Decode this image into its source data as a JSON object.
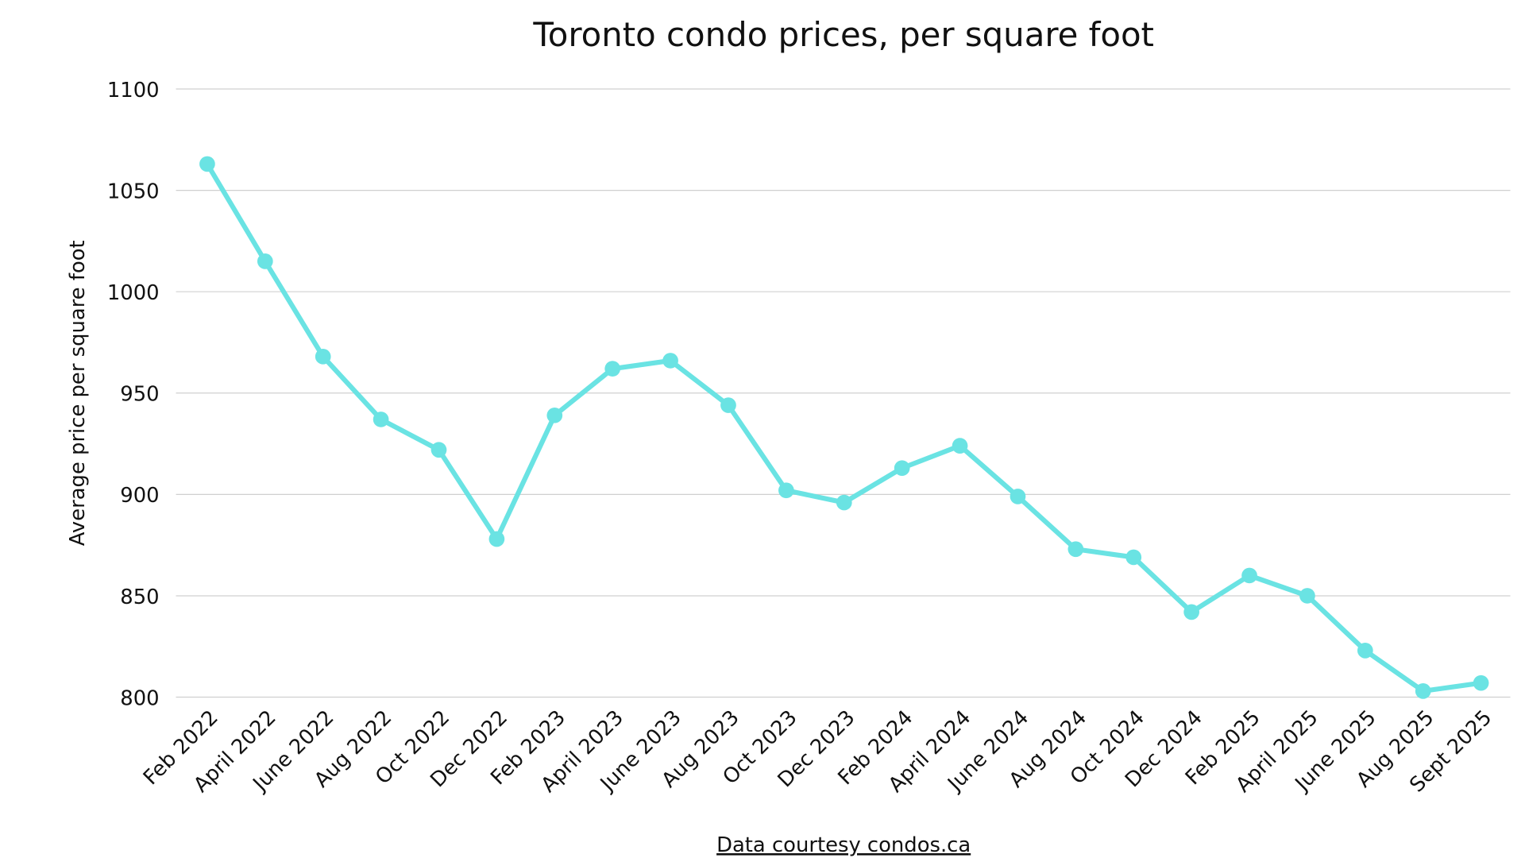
{
  "chart_data": {
    "type": "line",
    "title": "Toronto condo prices, per square foot",
    "xlabel": "",
    "ylabel": "Average price per square foot",
    "source": "Data courtesy condos.ca",
    "ylim": [
      800,
      1100
    ],
    "yticks": [
      800,
      850,
      900,
      950,
      1000,
      1050,
      1100
    ],
    "grid": true,
    "line_color": "#6ae3e3",
    "categories": [
      "Feb 2022",
      "April 2022",
      "June 2022",
      "Aug 2022",
      "Oct 2022",
      "Dec 2022",
      "Feb 2023",
      "April 2023",
      "June 2023",
      "Aug 2023",
      "Oct 2023",
      "Dec 2023",
      "Feb 2024",
      "April 2024",
      "June 2024",
      "Aug 2024",
      "Oct 2024",
      "Dec 2024",
      "Feb 2025",
      "April 2025",
      "June 2025",
      "Aug 2025",
      "Sept 2025"
    ],
    "values": [
      1063,
      1015,
      968,
      937,
      922,
      878,
      939,
      962,
      966,
      944,
      902,
      896,
      913,
      924,
      899,
      873,
      869,
      842,
      860,
      850,
      823,
      803,
      807
    ]
  }
}
